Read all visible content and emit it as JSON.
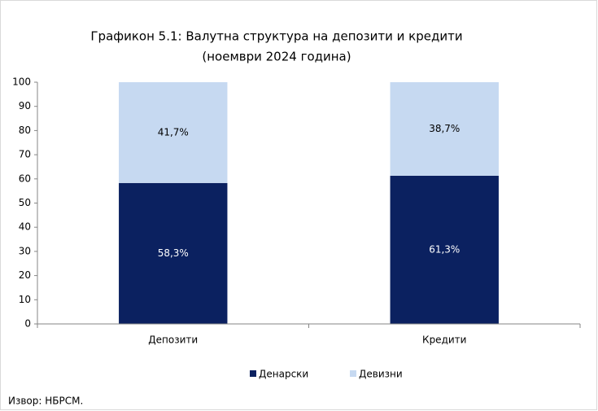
{
  "chart_data": {
    "type": "stacked_bar",
    "title": "Графикон 5.1: Валутна структура на депозити и кредити",
    "subtitle": "(ноември 2024 година)",
    "categories": [
      "Депозити",
      "Кредити"
    ],
    "series": [
      {
        "name": "Денарски",
        "color": "#0b2160",
        "values": [
          58.3,
          61.3
        ],
        "value_labels": [
          "58,3%",
          "61,3%"
        ]
      },
      {
        "name": "Девизни",
        "color": "#c6d9f1",
        "values": [
          41.7,
          38.7
        ],
        "value_labels": [
          "41,7%",
          "38,7%"
        ]
      }
    ],
    "ylim": [
      0,
      100
    ],
    "yticks": [
      0,
      10,
      20,
      30,
      40,
      50,
      60,
      70,
      80,
      90,
      100
    ],
    "legend": "bottom",
    "source": "Извор: НБРСМ."
  }
}
